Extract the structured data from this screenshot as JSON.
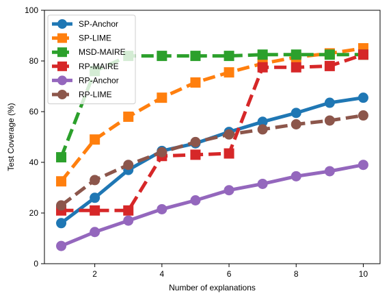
{
  "chart_data": {
    "type": "line",
    "title": "",
    "xlabel": "Number of explanations",
    "ylabel": "Test Coverage (%)",
    "xlim": [
      0.5,
      10.5
    ],
    "ylim": [
      0,
      100
    ],
    "x_ticks": [
      2,
      4,
      6,
      8,
      10
    ],
    "y_ticks": [
      0,
      20,
      40,
      60,
      80,
      100
    ],
    "grid": false,
    "legend_position": "top-left",
    "series": [
      {
        "name": "SP-Anchor",
        "color": "#1f77b4",
        "marker": "circle",
        "linestyle": "solid",
        "x": [
          1,
          2,
          3,
          4,
          5,
          6,
          7,
          8,
          9,
          10
        ],
        "values": [
          16,
          26,
          37,
          44.5,
          47.5,
          52,
          56,
          59.5,
          63.5,
          65.5
        ]
      },
      {
        "name": "SP-LIME",
        "color": "#ff7f0e",
        "marker": "square",
        "linestyle": "dashed",
        "x": [
          1,
          2,
          3,
          4,
          5,
          6,
          7,
          8,
          9,
          10
        ],
        "values": [
          32.5,
          49,
          58,
          65.5,
          71.5,
          75.5,
          79,
          81.5,
          83,
          85
        ]
      },
      {
        "name": "MSD-MAIRE",
        "color": "#2ca02c",
        "marker": "square",
        "linestyle": "dashed",
        "x": [
          1,
          2,
          3,
          4,
          5,
          6,
          7,
          8,
          9,
          10
        ],
        "values": [
          42,
          76,
          82,
          82,
          82,
          82,
          82.5,
          82.5,
          82.5,
          82.5
        ]
      },
      {
        "name": "RP-MAIRE",
        "color": "#d62728",
        "marker": "square",
        "linestyle": "dashed",
        "x": [
          1,
          2,
          3,
          4,
          5,
          6,
          7,
          8,
          9,
          10
        ],
        "values": [
          21,
          21,
          21,
          42.5,
          43,
          43.5,
          77.5,
          77.5,
          78,
          82.5
        ]
      },
      {
        "name": "RP-Anchor",
        "color": "#9467bd",
        "marker": "circle",
        "linestyle": "solid",
        "x": [
          1,
          2,
          3,
          4,
          5,
          6,
          7,
          8,
          9,
          10
        ],
        "values": [
          7,
          12.5,
          17,
          21.5,
          25,
          29,
          31.5,
          34.5,
          36.5,
          39
        ]
      },
      {
        "name": "RP-LIME",
        "color": "#8c564b",
        "marker": "circle",
        "linestyle": "dashed",
        "x": [
          1,
          2,
          3,
          4,
          5,
          6,
          7,
          8,
          9,
          10
        ],
        "values": [
          23,
          33,
          39,
          44,
          48,
          51,
          53,
          55,
          56.5,
          58.5
        ]
      }
    ]
  }
}
